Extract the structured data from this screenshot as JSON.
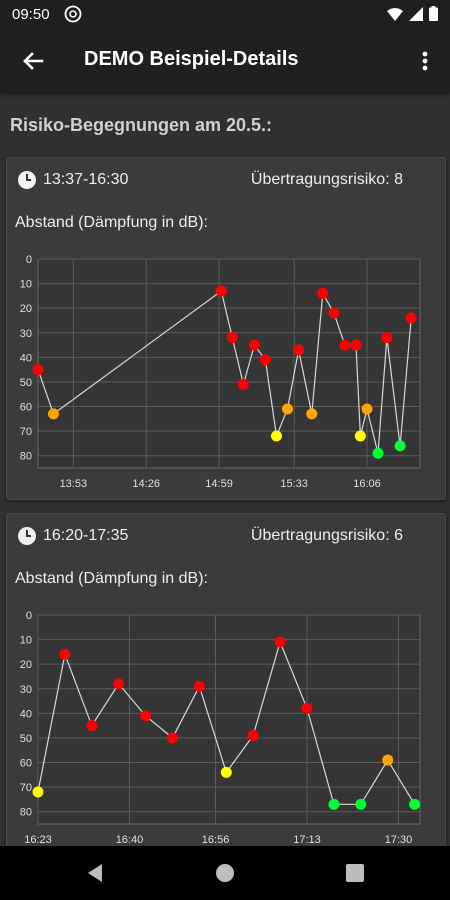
{
  "status_bar": {
    "time": "09:50",
    "icons": [
      "notification-icon",
      "wifi-icon",
      "signal-icon",
      "battery-icon"
    ]
  },
  "app_bar": {
    "title": "DEMO Beispiel-Details",
    "back_icon": "arrow-back-icon",
    "menu_icon": "more-vert-icon"
  },
  "section_title": "Risiko-Begegnungen am 20.5.:",
  "encounters": [
    {
      "time_range": "13:37-16:30",
      "risk_label": "Übertragungsrisiko: 8",
      "chart_title": "Abstand (Dämpfung in dB):"
    },
    {
      "time_range": "16:20-17:35",
      "risk_label": "Übertragungsrisiko: 6",
      "chart_title": "Abstand (Dämpfung in dB):"
    }
  ],
  "colors": {
    "red": "#ff0000",
    "orange": "#ffa500",
    "yellow": "#ffff00",
    "green": "#00ff33",
    "line": "#d8d8d8",
    "grid": "#5c5c5c"
  },
  "chart_data": [
    {
      "type": "scatter",
      "title": "Abstand (Dämpfung in dB):",
      "y_ticks": [
        0,
        10,
        20,
        30,
        40,
        50,
        60,
        70,
        80
      ],
      "ylim": [
        0,
        85
      ],
      "y_inverted": true,
      "x_ticks": [
        "13:53",
        "14:26",
        "14:59",
        "15:33",
        "16:06"
      ],
      "x_tick_minutes": [
        833,
        866,
        899,
        933,
        966
      ],
      "xlim_minutes": [
        817,
        990
      ],
      "grid": true,
      "series": [
        {
          "x": [
            817,
            824,
            900,
            905,
            910,
            915,
            920,
            925,
            930,
            935,
            941,
            946,
            951,
            956,
            961,
            963,
            966,
            971,
            975,
            981,
            986
          ],
          "y": [
            45,
            63,
            13,
            32,
            51,
            35,
            41,
            72,
            61,
            37,
            63,
            14,
            22,
            35,
            35,
            72,
            61,
            79,
            32,
            76,
            24
          ],
          "colors": [
            "red",
            "orange",
            "red",
            "red",
            "red",
            "red",
            "red",
            "yellow",
            "orange",
            "red",
            "orange",
            "red",
            "red",
            "red",
            "red",
            "yellow",
            "orange",
            "green",
            "red",
            "green",
            "red"
          ]
        }
      ]
    },
    {
      "type": "scatter",
      "title": "Abstand (Dämpfung in dB):",
      "y_ticks": [
        0,
        10,
        20,
        30,
        40,
        50,
        60,
        70,
        80
      ],
      "ylim": [
        0,
        85
      ],
      "y_inverted": true,
      "x_ticks": [
        "16:23",
        "16:40",
        "16:56",
        "17:13",
        "17:30"
      ],
      "x_tick_minutes": [
        983,
        1000,
        1016,
        1033,
        1050
      ],
      "xlim_minutes": [
        983,
        1054
      ],
      "grid": true,
      "series": [
        {
          "x": [
            983,
            988,
            993,
            998,
            1003,
            1008,
            1013,
            1018,
            1023,
            1028,
            1033,
            1038,
            1043,
            1048,
            1053
          ],
          "y": [
            72,
            16,
            45,
            28,
            41,
            50,
            29,
            64,
            49,
            11,
            38,
            77,
            77,
            59,
            77
          ],
          "colors": [
            "yellow",
            "red",
            "red",
            "red",
            "red",
            "red",
            "red",
            "yellow",
            "red",
            "red",
            "red",
            "green",
            "green",
            "orange",
            "green"
          ]
        }
      ]
    }
  ]
}
